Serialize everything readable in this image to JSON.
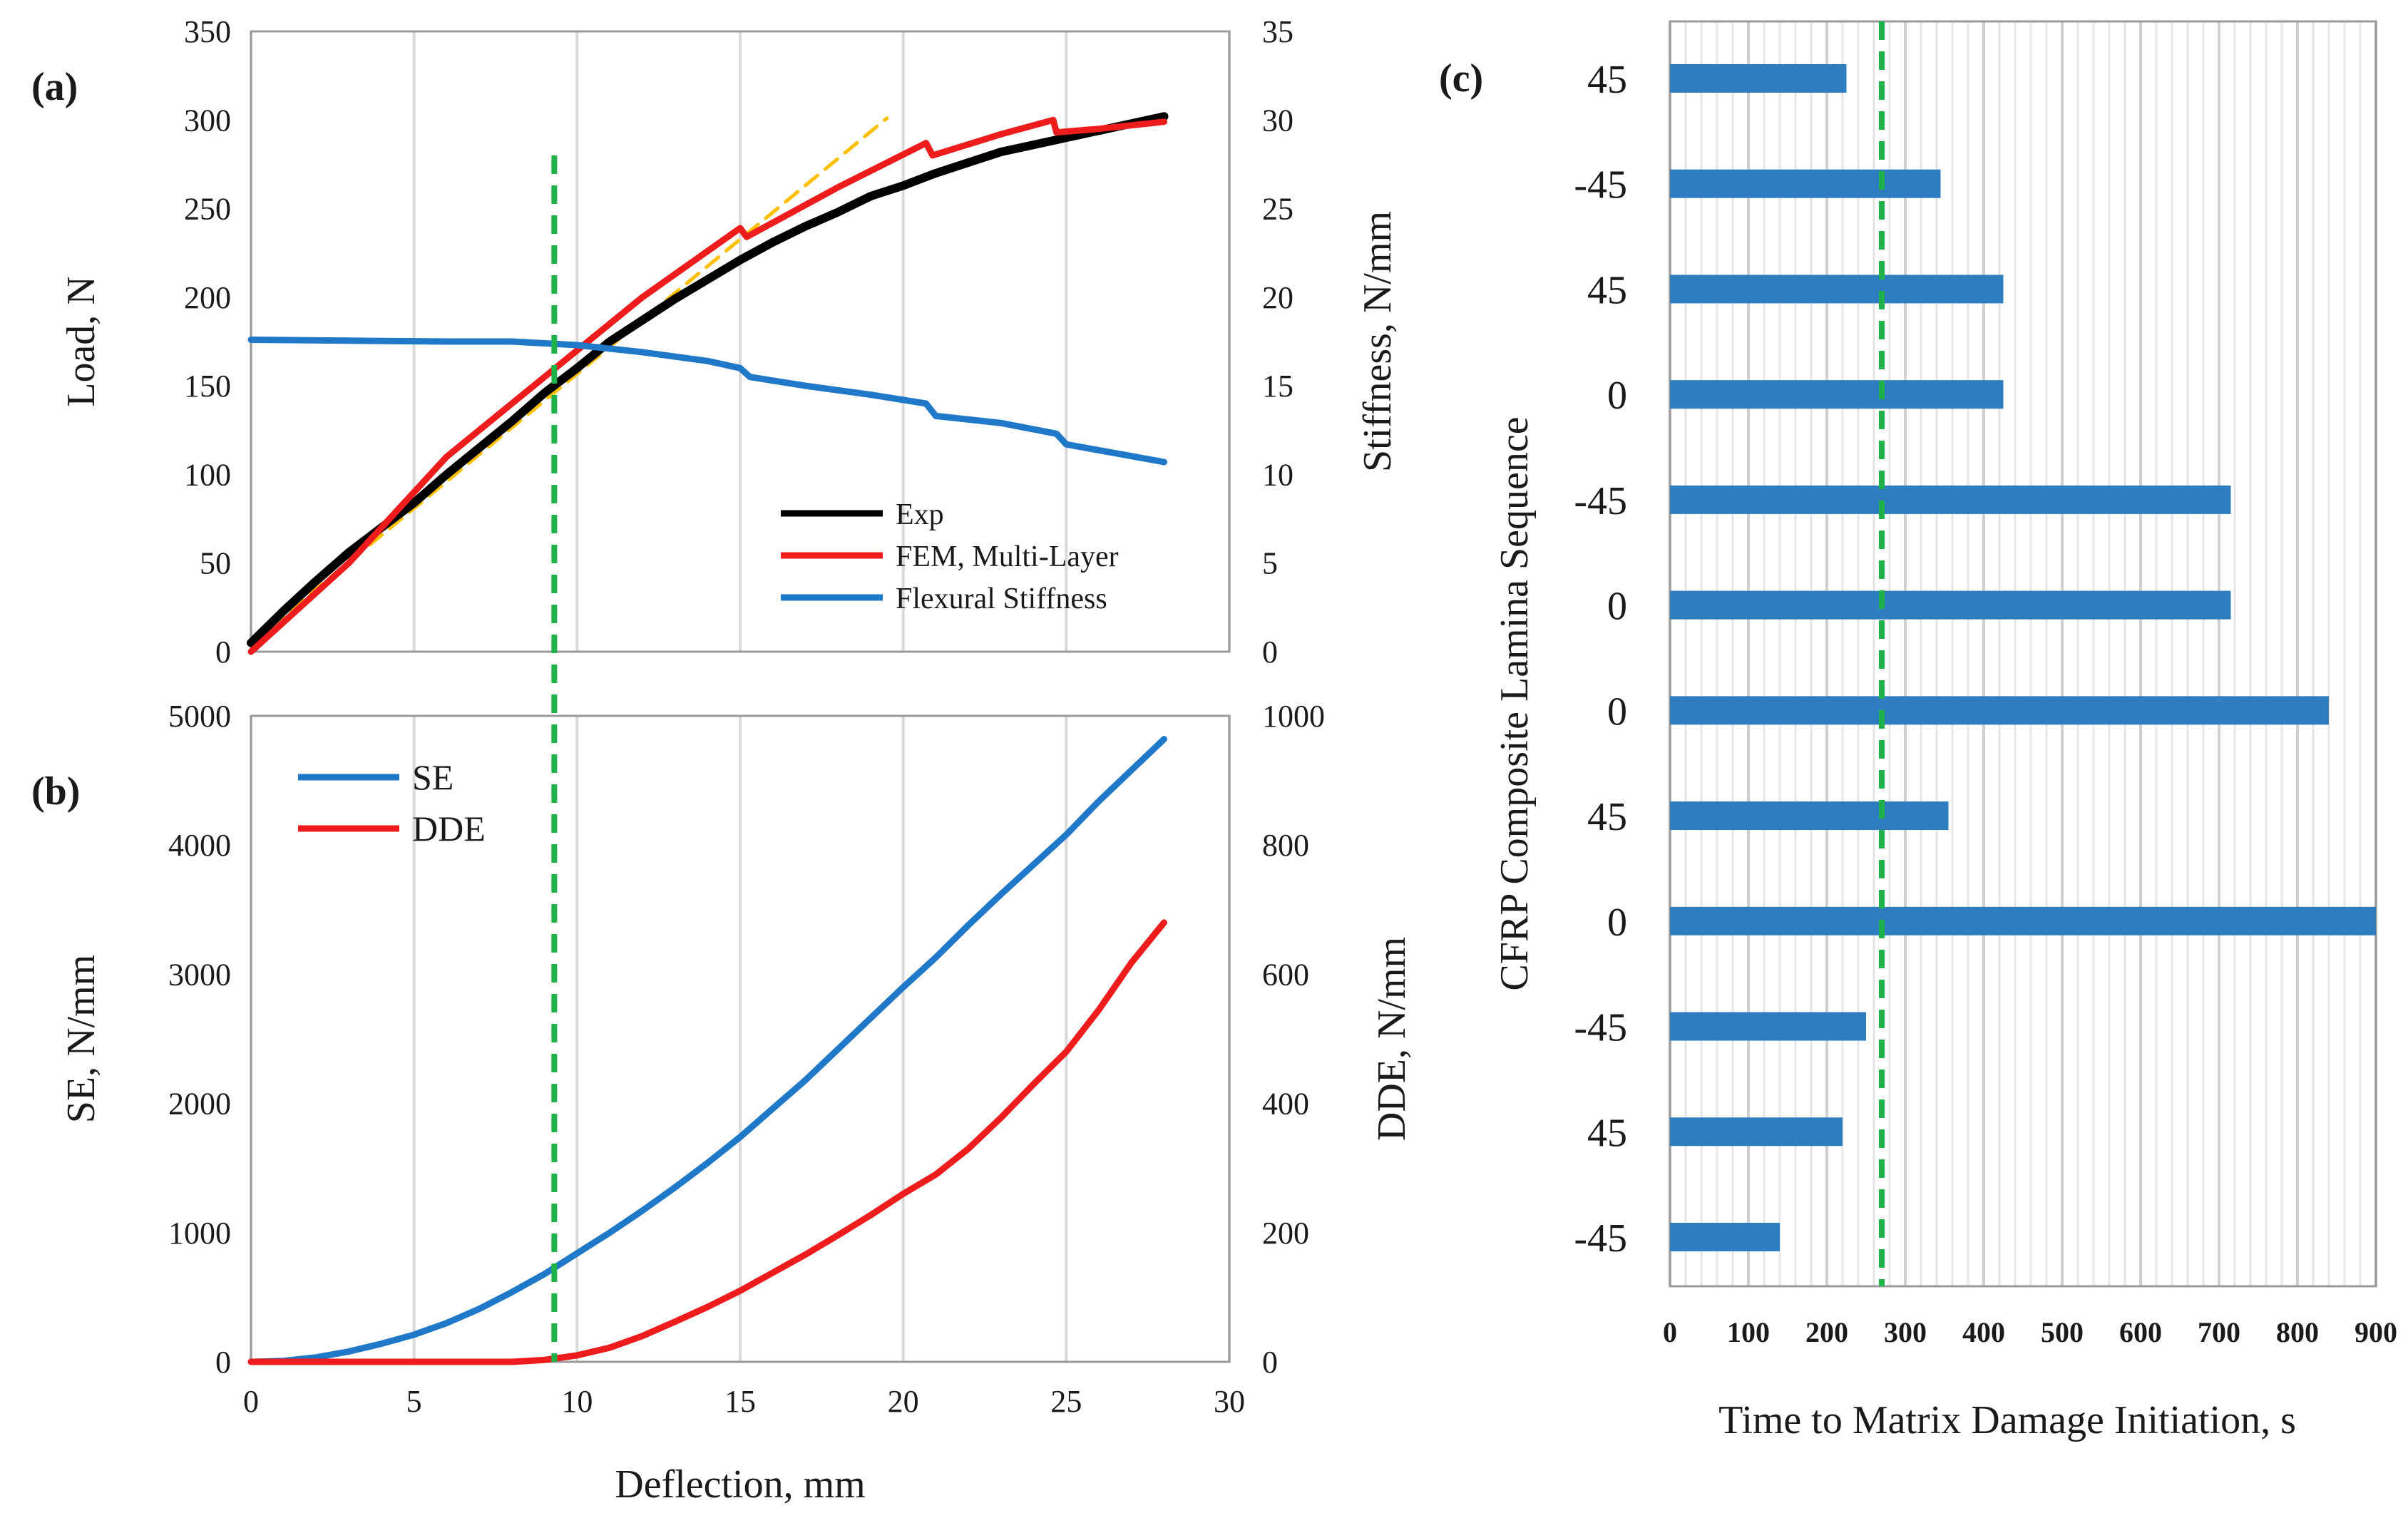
{
  "panels": {
    "a": {
      "label": "(a)",
      "ylabel_left": "Load, N",
      "ylabel_right": "Stiffness, N/mm",
      "legend": [
        "Exp",
        "FEM, Multi-Layer",
        "Flexural Stiffness"
      ]
    },
    "b": {
      "label": "(b)",
      "ylabel_left": "SE, N/mm",
      "ylabel_right": "DDE, N/mm",
      "xlabel": "Deflection, mm",
      "legend": [
        "SE",
        "DDE"
      ]
    },
    "c": {
      "label": "(c)",
      "ylabel": "CFRP Composite Lamina Sequence",
      "xlabel": "Time to Matrix Damage Initiation, s"
    }
  },
  "colors": {
    "exp": "#000000",
    "fem": "#ee1c1c",
    "stiffness": "#1f78c8",
    "se": "#1f78c8",
    "dde": "#ee1c1c",
    "fit": "#ffc000",
    "marker": "#1fb24a",
    "bar": "#2e7ebf",
    "grid": "#d9d9d9"
  },
  "chart_data": [
    {
      "id": "a",
      "type": "line",
      "title": "(a)",
      "xlabel": "",
      "ylabel": "Load, N",
      "y2label": "Stiffness, N/mm",
      "xlim": [
        0,
        30
      ],
      "ylim": [
        0,
        350
      ],
      "y2lim": [
        0,
        35
      ],
      "xticks": [
        0,
        5,
        10,
        15,
        20,
        25,
        30
      ],
      "yticks": [
        0,
        50,
        100,
        150,
        200,
        250,
        300,
        350
      ],
      "y2ticks": [
        0,
        5,
        10,
        15,
        20,
        25,
        30,
        35
      ],
      "series": [
        {
          "name": "Exp",
          "axis": "left",
          "x": [
            0,
            1,
            2,
            3,
            4,
            5,
            6,
            7,
            8,
            9,
            10,
            11,
            12,
            13,
            14,
            15,
            16,
            17,
            18,
            19,
            20,
            21,
            22,
            23,
            24,
            25,
            26,
            27,
            28
          ],
          "y": [
            5,
            23,
            40,
            56,
            70,
            84,
            100,
            115,
            130,
            146,
            160,
            175,
            187,
            199,
            210,
            221,
            231,
            240,
            248,
            257,
            263,
            270,
            276,
            282,
            286,
            290,
            294,
            298,
            302
          ]
        },
        {
          "name": "FEM, Multi-Layer",
          "axis": "left",
          "x": [
            0,
            3,
            6,
            9,
            12,
            15,
            15.2,
            18,
            20.7,
            20.9,
            23,
            24.6,
            24.7,
            26,
            28
          ],
          "y": [
            0,
            50,
            110,
            155,
            200,
            239,
            234,
            262,
            287,
            280,
            292,
            300,
            293,
            295,
            299
          ]
        },
        {
          "name": "Flexural Stiffness",
          "axis": "right",
          "x": [
            0,
            3,
            6,
            8,
            10,
            12,
            14,
            15,
            15.3,
            17,
            19,
            20.7,
            21,
            23,
            24.7,
            25,
            26.5,
            28
          ],
          "y": [
            17.6,
            17.55,
            17.5,
            17.5,
            17.3,
            16.9,
            16.4,
            16.0,
            15.5,
            15.0,
            14.5,
            14.0,
            13.3,
            12.9,
            12.3,
            11.7,
            11.2,
            10.7
          ]
        },
        {
          "name": "Linear fit",
          "axis": "left",
          "x": [
            0,
            19.5
          ],
          "y": [
            5,
            301
          ]
        }
      ],
      "marker_x": 9.3
    },
    {
      "id": "b",
      "type": "line",
      "title": "(b)",
      "xlabel": "Deflection, mm",
      "ylabel": "SE, N/mm",
      "y2label": "DDE, N/mm",
      "xlim": [
        0,
        30
      ],
      "ylim": [
        0,
        5000
      ],
      "y2lim": [
        0,
        1000
      ],
      "xticks": [
        0,
        5,
        10,
        15,
        20,
        25,
        30
      ],
      "yticks": [
        0,
        1000,
        2000,
        3000,
        4000,
        5000
      ],
      "y2ticks": [
        0,
        200,
        400,
        600,
        800,
        1000
      ],
      "series": [
        {
          "name": "SE",
          "axis": "left",
          "x": [
            0,
            1,
            2,
            3,
            4,
            5,
            6,
            7,
            8,
            9,
            10,
            11,
            12,
            13,
            14,
            15,
            16,
            17,
            18,
            19,
            20,
            21,
            22,
            23,
            24,
            25,
            26,
            27,
            28
          ],
          "y": [
            0,
            8,
            35,
            80,
            140,
            210,
            300,
            410,
            540,
            680,
            840,
            1000,
            1170,
            1350,
            1540,
            1740,
            1960,
            2180,
            2420,
            2660,
            2900,
            3130,
            3380,
            3620,
            3850,
            4080,
            4340,
            4580,
            4820
          ]
        },
        {
          "name": "DDE",
          "axis": "right",
          "x": [
            0,
            8,
            9,
            10,
            11,
            12,
            13,
            14,
            15,
            16,
            17,
            18,
            19,
            20,
            21,
            22,
            23,
            24,
            25,
            26,
            27,
            28
          ],
          "y": [
            0,
            0,
            3,
            10,
            22,
            40,
            62,
            85,
            110,
            138,
            166,
            196,
            227,
            260,
            290,
            330,
            378,
            430,
            480,
            545,
            618,
            680
          ]
        }
      ],
      "marker_x": 9.3
    },
    {
      "id": "c",
      "type": "bar",
      "orientation": "horizontal",
      "title": "(c)",
      "xlabel": "Time to Matrix Damage Initiation, s",
      "ylabel": "CFRP Composite Lamina Sequence",
      "xlim": [
        0,
        900
      ],
      "xticks": [
        0,
        100,
        200,
        300,
        400,
        500,
        600,
        700,
        800,
        900
      ],
      "categories": [
        "45",
        "-45",
        "45",
        "0",
        "-45",
        "0",
        "0",
        "45",
        "0",
        "-45",
        "45",
        "-45"
      ],
      "values": [
        225,
        345,
        425,
        425,
        715,
        715,
        840,
        355,
        905,
        250,
        220,
        140
      ],
      "marker_x": 270
    }
  ]
}
